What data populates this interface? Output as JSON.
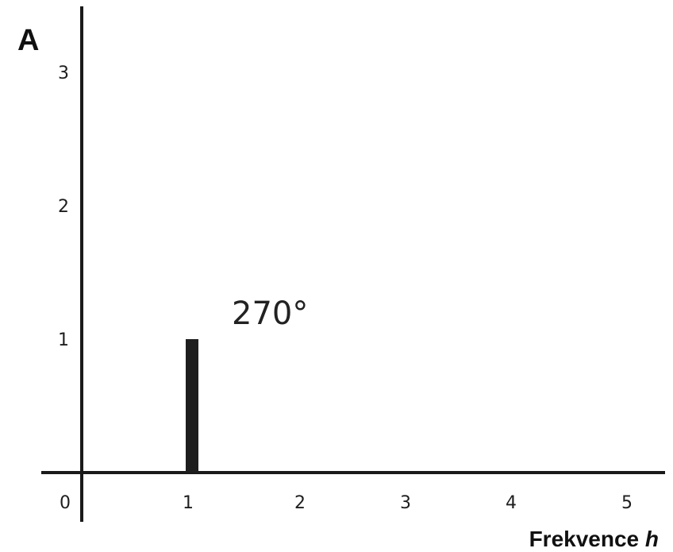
{
  "chart_data": {
    "type": "bar",
    "x": [
      1
    ],
    "values": [
      1
    ],
    "ylabel": "A",
    "xlabel": {
      "text": "Frekvence ",
      "var": "h"
    },
    "xlim": [
      0,
      5
    ],
    "ylim": [
      0,
      3
    ],
    "x_ticks": [
      "0",
      "1",
      "2",
      "3",
      "4",
      "5"
    ],
    "y_ticks": [
      "1",
      "2",
      "3"
    ],
    "annotations": [
      {
        "text": "270°",
        "x": 1
      }
    ],
    "grid": false,
    "bar_color": "#1e1e1e",
    "axis_color": "#1a1a1a"
  }
}
